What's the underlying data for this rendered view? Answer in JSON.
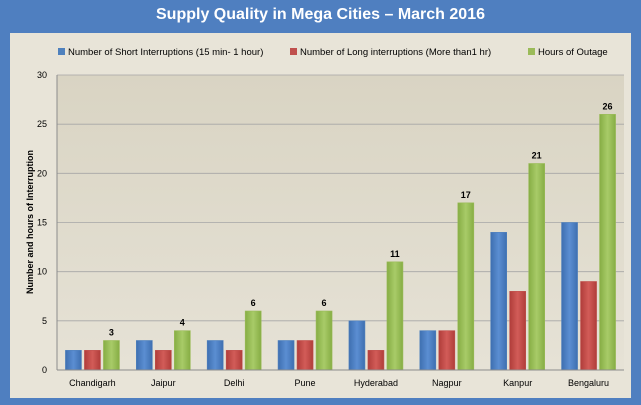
{
  "chart_data": {
    "type": "bar",
    "title": "Supply Quality in Mega Cities – March 2016",
    "xlabel": "",
    "ylabel": "Number and hours of Interruption",
    "ylim": [
      0,
      30
    ],
    "yticks": [
      0,
      5,
      10,
      15,
      20,
      25,
      30
    ],
    "grid": "horizontal",
    "legend_position": "top",
    "categories": [
      "Chandigarh",
      "Jaipur",
      "Delhi",
      "Pune",
      "Hyderabad",
      "Nagpur",
      "Kanpur",
      "Bengaluru"
    ],
    "series": [
      {
        "name": "Number of Short Interruptions (15 min- 1 hour)",
        "color": "#4f81bd",
        "values": [
          2,
          3,
          3,
          3,
          5,
          4,
          14,
          15
        ],
        "show_labels": false
      },
      {
        "name": "Number of Long interruptions (More than1 hr)",
        "color": "#c0504d",
        "values": [
          2,
          2,
          2,
          3,
          2,
          4,
          8,
          9
        ],
        "show_labels": false
      },
      {
        "name": "Hours of Outage",
        "color": "#9bbb59",
        "values": [
          3,
          4,
          6,
          6,
          11,
          17,
          21,
          26
        ],
        "show_labels": true
      }
    ]
  }
}
